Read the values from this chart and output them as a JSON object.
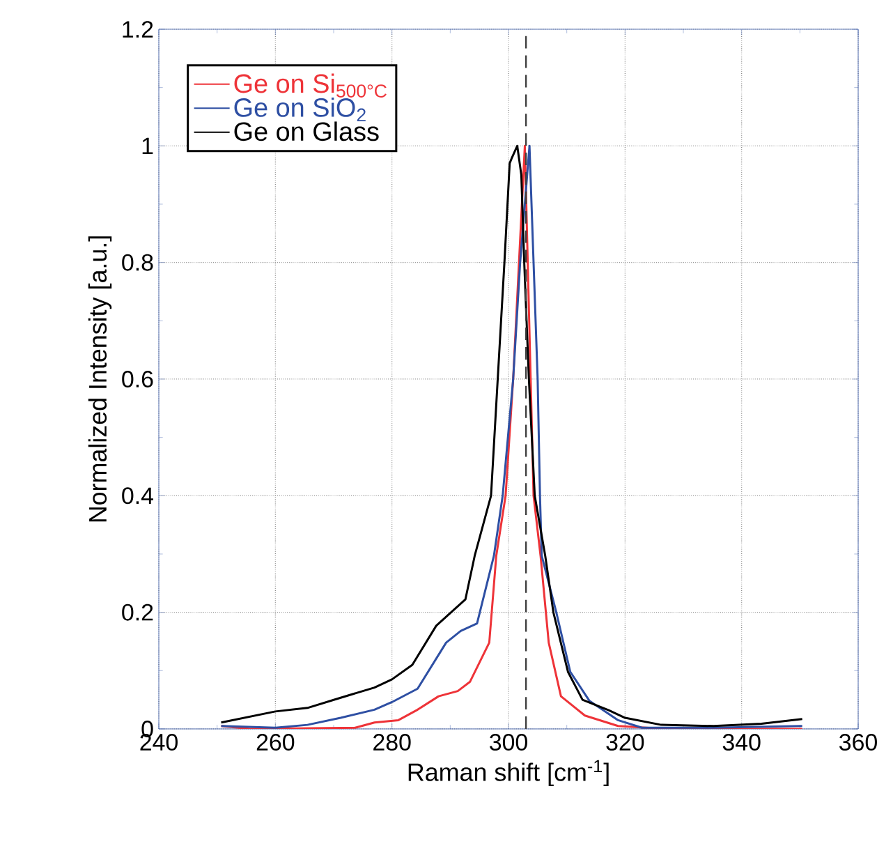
{
  "chart_data": {
    "type": "line",
    "xlabel": "Raman shift [cm$^{-1}$]",
    "ylabel": "Normalized Intensity [a.u.]",
    "xlim": [
      240,
      360
    ],
    "xticks": [
      240,
      260,
      280,
      300,
      320,
      340,
      360
    ],
    "ylim": [
      0,
      1.2
    ],
    "yticks": [
      0,
      0.2,
      0.4,
      0.6,
      0.8,
      1,
      1.2
    ],
    "grid": true,
    "legend": "top left",
    "line_style": "solid",
    "marker": "none",
    "ref_lines": [
      {
        "axis": "x",
        "value": 303,
        "color": "#404040",
        "line_style": "dashed"
      }
    ],
    "series": [
      {
        "name": "Ge on Si$_{500°C}$",
        "color": "#ee3338",
        "x": [
          250.7,
          255.7,
          273.7,
          277,
          281.1,
          284.4,
          288,
          291.3,
          293.4,
          296.7,
          297.9,
          299.5,
          300.8,
          301.8,
          302.8,
          303.3,
          303.8,
          304.3,
          305.5,
          306.9,
          309,
          313.1,
          318.8,
          327,
          350.4
        ],
        "values": [
          0.005,
          0,
          0.002,
          0.011,
          0.015,
          0.033,
          0.056,
          0.065,
          0.081,
          0.148,
          0.297,
          0.4,
          0.6,
          0.8,
          1.0,
          0.8,
          0.6,
          0.4,
          0.297,
          0.148,
          0.056,
          0.023,
          0.005,
          0,
          0
        ]
      },
      {
        "name": "Ge on SiO$_{2}$",
        "color": "#2e4fa3",
        "x": [
          250.7,
          260,
          265.5,
          271.2,
          277,
          280,
          284.4,
          289.3,
          291.8,
          294.6,
          297.5,
          299,
          300.8,
          302,
          303.6,
          304.3,
          305,
          305.4,
          305.7,
          308.2,
          310.6,
          313.9,
          318.8,
          322.9,
          335,
          350.4
        ],
        "values": [
          0.005,
          0.002,
          0.007,
          0.019,
          0.033,
          0.046,
          0.069,
          0.148,
          0.168,
          0.181,
          0.297,
          0.4,
          0.6,
          0.8,
          1.0,
          0.8,
          0.6,
          0.4,
          0.297,
          0.2,
          0.098,
          0.048,
          0.015,
          0.002,
          0.002,
          0.005
        ]
      },
      {
        "name": "Ge on Glass",
        "color": "#000000",
        "x": [
          250.7,
          260,
          265.5,
          270.4,
          277,
          280,
          283.5,
          287.6,
          292.6,
          294.2,
          297,
          299.3,
          300.2,
          300.6,
          301.5,
          302.2,
          302.7,
          303.5,
          304.5,
          306.3,
          307.7,
          310.2,
          312.7,
          317.2,
          320,
          326.2,
          335.2,
          343.4,
          350.4
        ],
        "values": [
          0.011,
          0.03,
          0.036,
          0.051,
          0.071,
          0.085,
          0.11,
          0.177,
          0.222,
          0.297,
          0.4,
          0.8,
          0.97,
          0.98,
          1.0,
          0.95,
          0.8,
          0.6,
          0.4,
          0.297,
          0.2,
          0.098,
          0.05,
          0.032,
          0.019,
          0.007,
          0.005,
          0.009,
          0.017
        ]
      }
    ]
  }
}
